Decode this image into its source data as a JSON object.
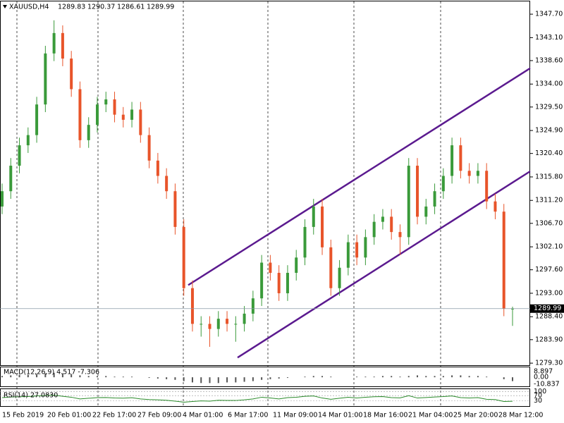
{
  "chart_data": {
    "type": "candlestick",
    "symbol": "XAUUSD,H4",
    "open": [
      1310,
      1313,
      1318,
      1322,
      1324,
      1330,
      1340,
      1344,
      1339,
      1333,
      1323,
      1326,
      1330,
      1331,
      1328,
      1327,
      1329,
      1324,
      1319,
      1316,
      1313,
      1306,
      1294,
      1287,
      1287,
      1286,
      1288,
      1287,
      1287,
      1289,
      1292,
      1299,
      1297,
      1293,
      1297,
      1300,
      1306,
      1310,
      1302,
      1294,
      1298,
      1303,
      1300,
      1304,
      1307,
      1308,
      1305,
      1304,
      1318,
      1308,
      1310,
      1313,
      1316,
      1322,
      1317,
      1316,
      1317,
      1311,
      1309,
      1289.83
    ],
    "high": [
      1314.5,
      1319.5,
      1323.5,
      1325.5,
      1331.5,
      1341.5,
      1346.5,
      1345.5,
      1340.5,
      1334.5,
      1327.5,
      1331.5,
      1332.5,
      1332.5,
      1329.5,
      1330.5,
      1330.5,
      1325.5,
      1320.5,
      1317.5,
      1314.5,
      1307.5,
      1295.5,
      1288.5,
      1288.5,
      1289.5,
      1289.5,
      1288.5,
      1290.5,
      1293.5,
      1300.5,
      1300.5,
      1298.5,
      1298.5,
      1301.5,
      1307.5,
      1311.5,
      1311.5,
      1303.5,
      1299.5,
      1304.5,
      1304.5,
      1305.5,
      1308.5,
      1309.5,
      1309.5,
      1306.5,
      1319.5,
      1319.5,
      1311.5,
      1314.5,
      1317.5,
      1323.5,
      1323.5,
      1318.5,
      1318.5,
      1318.5,
      1312.5,
      1310.5,
      1290.37
    ],
    "low": [
      1308.5,
      1311.5,
      1316.5,
      1320.5,
      1322.5,
      1328.5,
      1338.5,
      1337.5,
      1331.5,
      1321.5,
      1321.5,
      1324.5,
      1328.5,
      1326.5,
      1325.5,
      1325.5,
      1322.5,
      1317.5,
      1314.5,
      1311.5,
      1304.5,
      1292.5,
      1285.5,
      1284.5,
      1282.5,
      1284.5,
      1285.5,
      1283.5,
      1285.5,
      1287.5,
      1290.5,
      1295.5,
      1291.5,
      1291.5,
      1295.5,
      1298.5,
      1304.5,
      1300.5,
      1292.5,
      1292.5,
      1296.5,
      1298.5,
      1298.5,
      1302.5,
      1305.5,
      1303.5,
      1300.5,
      1302.5,
      1306.5,
      1306.5,
      1308.5,
      1311.5,
      1314.5,
      1315.5,
      1314.5,
      1314.5,
      1309.5,
      1307.5,
      1288.5,
      1286.61
    ],
    "close": [
      1313,
      1318,
      1322,
      1324,
      1330,
      1340,
      1344,
      1339,
      1333,
      1323,
      1326,
      1330,
      1331,
      1328,
      1327,
      1329,
      1324,
      1319,
      1316,
      1313,
      1306,
      1294,
      1287,
      1287,
      1286,
      1288,
      1287,
      1287,
      1289,
      1292,
      1299,
      1297,
      1293,
      1297,
      1300,
      1306,
      1310,
      1302,
      1294,
      1298,
      1303,
      1300,
      1304,
      1307,
      1308,
      1305,
      1304,
      1318,
      1308,
      1310,
      1313,
      1316,
      1322,
      1317,
      1316,
      1317,
      1311,
      1309,
      1290,
      1289.99
    ],
    "up_color": "#3a9a3a",
    "down_color": "#e8542a",
    "ylim": [
      1278.9,
      1350.2
    ],
    "yticks": [
      {
        "value": 1347.7,
        "label": "1347.70"
      },
      {
        "value": 1343.1,
        "label": "1343.10"
      },
      {
        "value": 1338.6,
        "label": "1338.60"
      },
      {
        "value": 1334,
        "label": "1334.00"
      },
      {
        "value": 1329.5,
        "label": "1329.50"
      },
      {
        "value": 1324.9,
        "label": "1324.90"
      },
      {
        "value": 1320.4,
        "label": "1320.40"
      },
      {
        "value": 1315.8,
        "label": "1315.80"
      },
      {
        "value": 1311.2,
        "label": "1311.20"
      },
      {
        "value": 1306.7,
        "label": "1306.70"
      },
      {
        "value": 1302.1,
        "label": "1302.10"
      },
      {
        "value": 1297.6,
        "label": "1297.60"
      },
      {
        "value": 1293,
        "label": "1293.00"
      },
      {
        "value": 1288.4,
        "label": "1288.40"
      },
      {
        "value": 1283.9,
        "label": "1283.90"
      },
      {
        "value": 1279.3,
        "label": "1279.30"
      }
    ],
    "xlabels": [
      "15 Feb 2019",
      "20 Feb 01:00",
      "22 Feb 17:00",
      "27 Feb 09:00",
      "4 Mar 01:00",
      "6 Mar 17:00",
      "11 Mar 09:00",
      "14 Mar 01:00",
      "18 Mar 16:00",
      "21 Mar 04:00",
      "25 Mar 20:00",
      "28 Mar 12:00"
    ],
    "channel_lines": [
      {
        "start": 1294.6,
        "end": 1337.1
      },
      {
        "start": 1280.4,
        "end": 1316.9
      }
    ],
    "channel_color": "#5b1a8f",
    "macd": {
      "label": "MACD(12,26,9) 4.517 -7.306",
      "values": [
        2,
        3,
        4,
        4,
        5,
        6,
        7,
        6,
        5,
        3,
        2,
        2,
        2,
        1,
        1,
        1,
        0,
        -1,
        -2,
        -3,
        -4,
        -6,
        -8,
        -9,
        -9,
        -9,
        -8,
        -8,
        -7,
        -6,
        -4,
        -3,
        -2,
        -1,
        0,
        1,
        2,
        2,
        1,
        0,
        0,
        1,
        1,
        1,
        2,
        2,
        1,
        2,
        3,
        2,
        2,
        2,
        3,
        3,
        2,
        2,
        1,
        0,
        -3,
        -6
      ],
      "ylim": [
        -14.1,
        15.5
      ],
      "yticks": [
        8.897,
        {
          "value": 0,
          "label": "0.00"
        },
        -10.837
      ]
    },
    "rsi": {
      "label": "RSI(14) 27.0830",
      "values": [
        55,
        60,
        62,
        63,
        68,
        72,
        74,
        65,
        58,
        45,
        50,
        55,
        56,
        52,
        51,
        54,
        45,
        40,
        38,
        35,
        28,
        20,
        25,
        30,
        28,
        35,
        33,
        33,
        38,
        45,
        58,
        52,
        45,
        55,
        58,
        65,
        68,
        52,
        42,
        50,
        58,
        52,
        58,
        62,
        63,
        55,
        53,
        70,
        52,
        56,
        60,
        63,
        68,
        55,
        52,
        55,
        42,
        40,
        25,
        27
      ],
      "ylim": [
        -10,
        120
      ],
      "yticks": [
        100,
        70,
        30
      ]
    }
  }
}
